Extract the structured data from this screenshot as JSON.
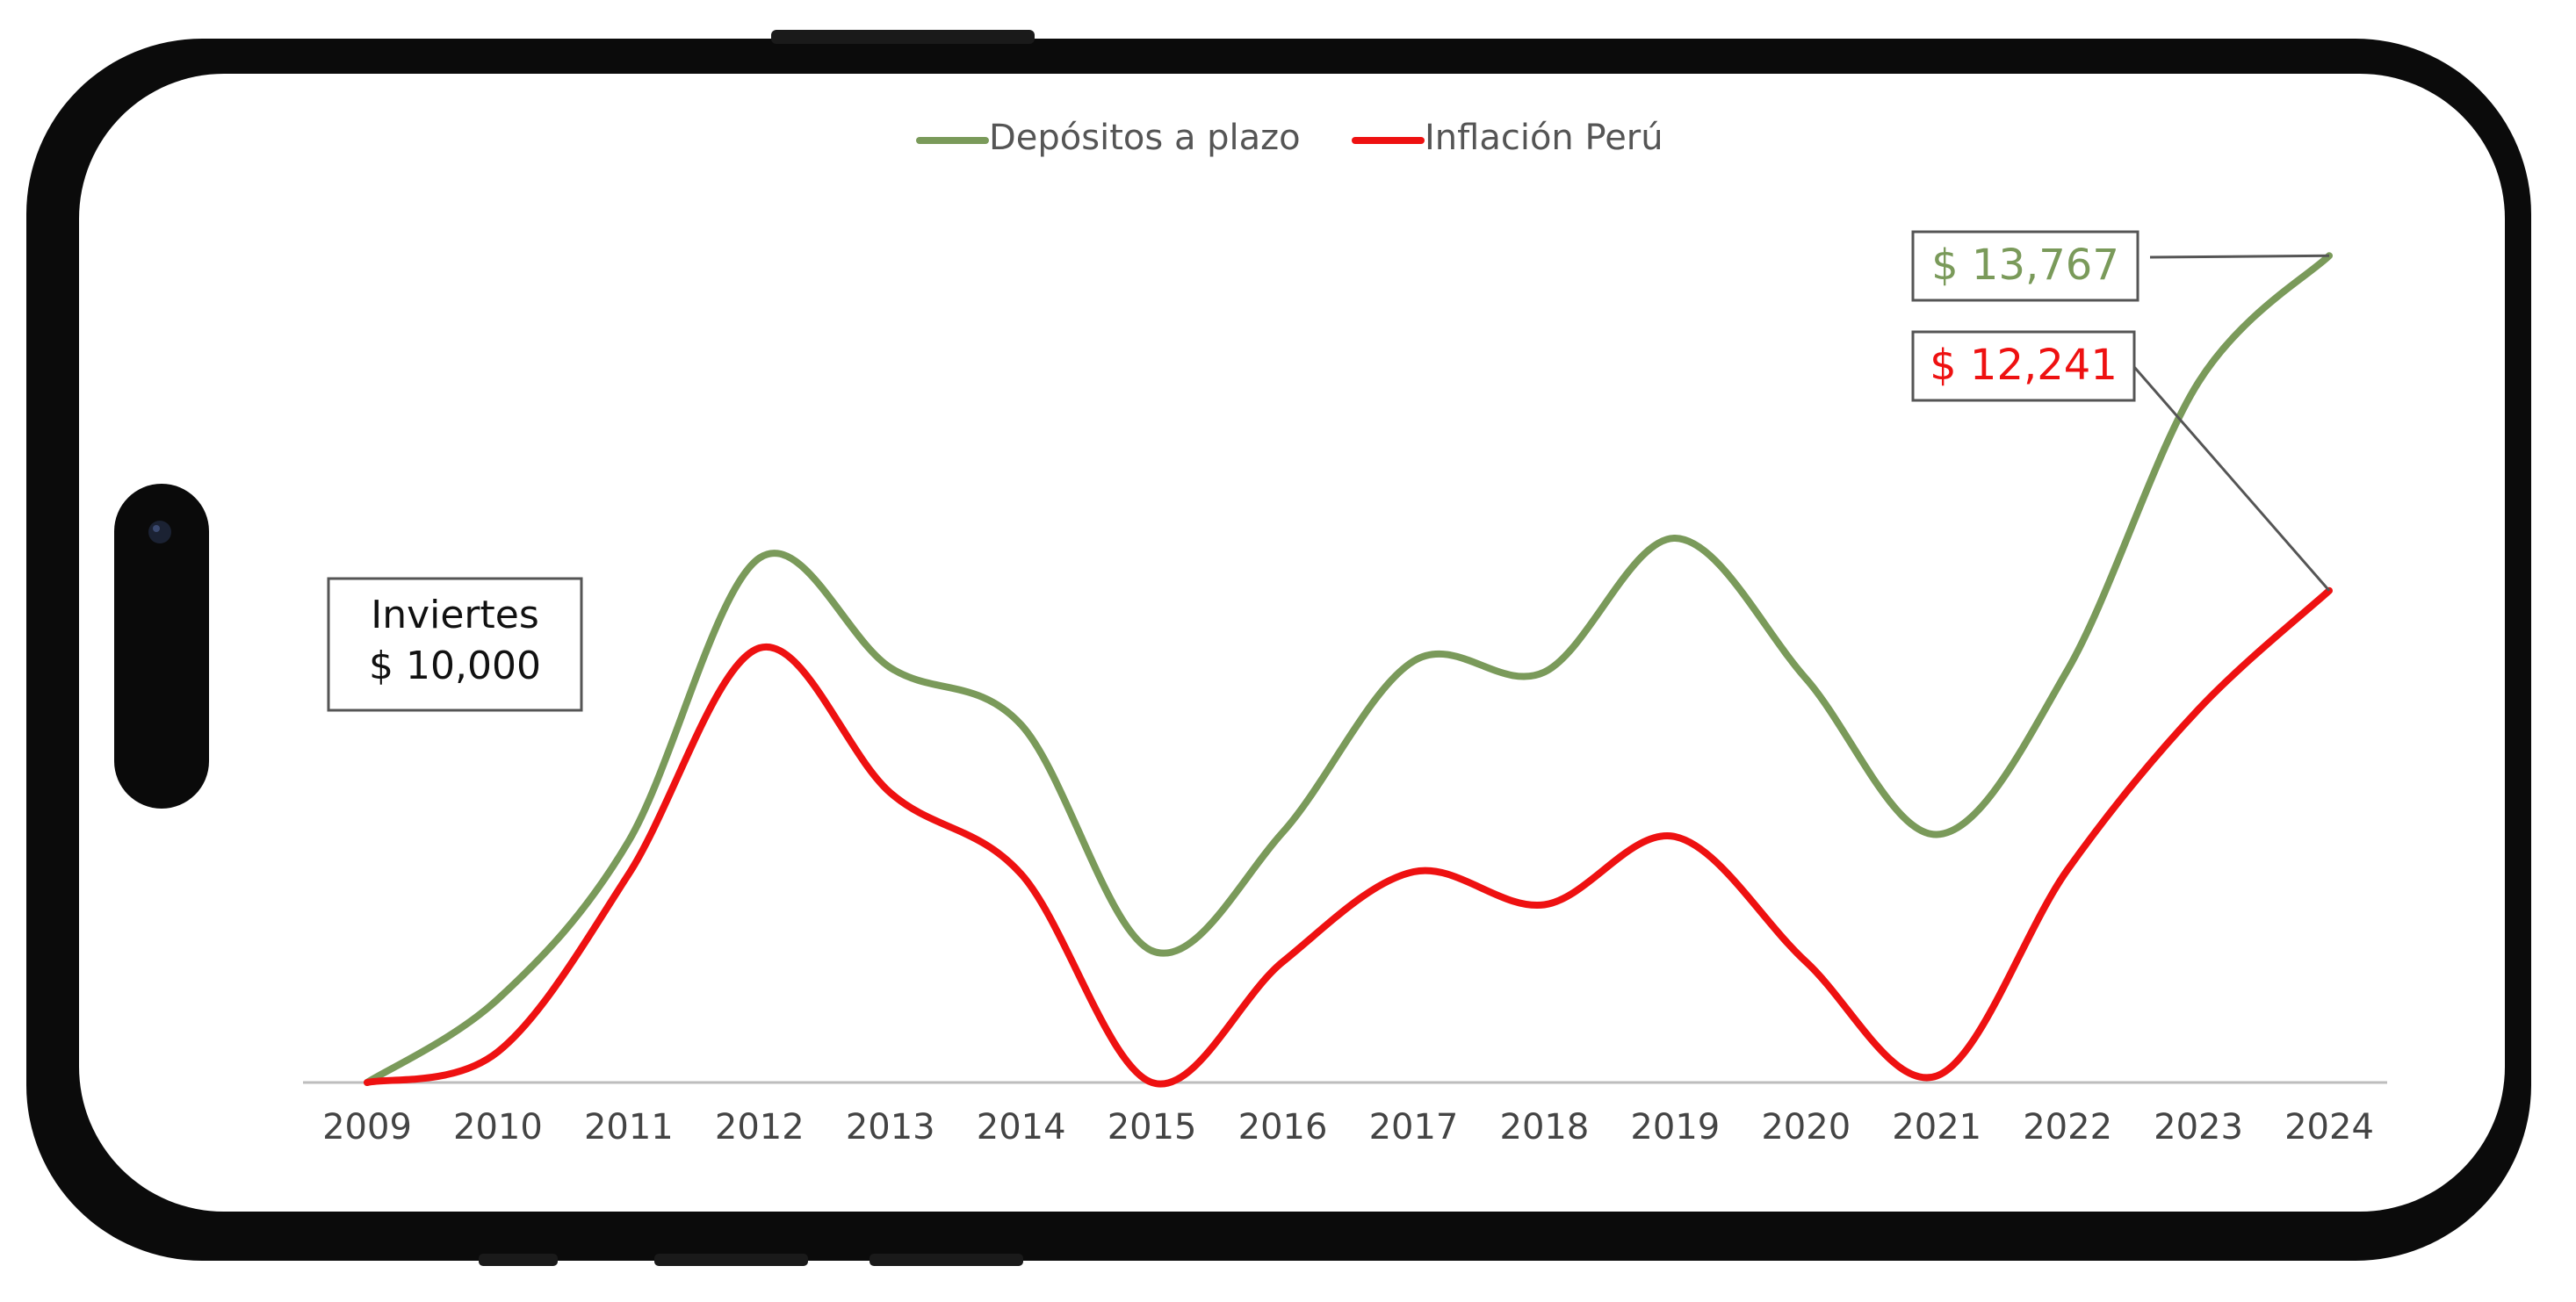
{
  "colors": {
    "series_green": "#7a9a5a",
    "series_red": "#ee1111",
    "frame": "#0b0b0b",
    "axis": "#bdbdbd",
    "tick_text": "#444444"
  },
  "chart_data": {
    "type": "line",
    "x": [
      "2009",
      "2010",
      "2011",
      "2012",
      "2013",
      "2014",
      "2015",
      "2016",
      "2017",
      "2018",
      "2019",
      "2020",
      "2021",
      "2022",
      "2023",
      "2024"
    ],
    "series": [
      {
        "name": "Depósitos a plazo",
        "color": "#7a9a5a",
        "values": [
          10000,
          10380,
          11100,
          12390,
          11890,
          11630,
          10600,
          11140,
          11920,
          11870,
          12480,
          11840,
          11130,
          11880,
          13190,
          13767
        ]
      },
      {
        "name": "Inflación Perú",
        "color": "#ee1111",
        "values": [
          10000,
          10140,
          10950,
          11980,
          11320,
          10950,
          10000,
          10550,
          10960,
          10810,
          11120,
          10550,
          10030,
          10970,
          11700,
          12241
        ]
      }
    ],
    "ylim": [
      10000,
      14000
    ],
    "legend_position": "top-center",
    "grid": false,
    "annotations": {
      "start_line1": "Inviertes",
      "start_line2": "$ 10,000",
      "end_green": "$ 13,767",
      "end_red": "$ 12,241"
    }
  }
}
